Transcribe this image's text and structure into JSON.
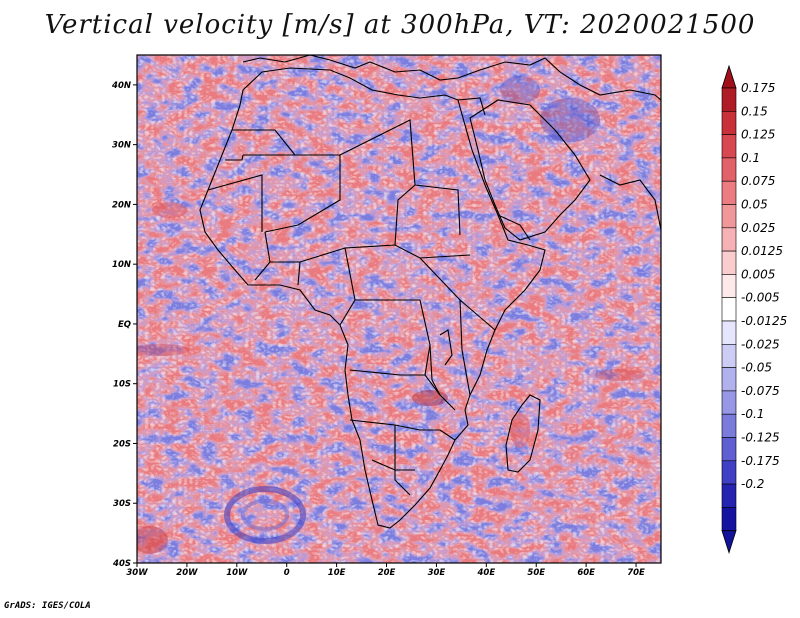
{
  "title": "Vertical velocity [m/s] at 300hPa, VT: 2020021500",
  "footer": "GrADS: IGES/COLA",
  "map": {
    "lat_labels": [
      "40N",
      "30N",
      "20N",
      "10N",
      "EQ",
      "10S",
      "20S",
      "30S",
      "40S"
    ],
    "lat_values": [
      40,
      30,
      20,
      10,
      0,
      -10,
      -20,
      -30,
      -40
    ],
    "lon_labels": [
      "30W",
      "20W",
      "10W",
      "0",
      "10E",
      "20E",
      "30E",
      "40E",
      "50E",
      "60E",
      "70E"
    ],
    "lon_values": [
      -30,
      -20,
      -10,
      0,
      10,
      20,
      30,
      40,
      50,
      60,
      70
    ],
    "lat_range": [
      -40,
      45
    ],
    "lon_range": [
      -30,
      75
    ],
    "field": "vertical velocity",
    "units": "m/s",
    "level": "300hPa",
    "valid_time": "2020021500"
  },
  "colorbar": {
    "labels": [
      "0.175",
      "0.15",
      "0.125",
      "0.1",
      "0.075",
      "0.05",
      "0.025",
      "0.0125",
      "0.005",
      "-0.005",
      "-0.0125",
      "-0.025",
      "-0.05",
      "-0.075",
      "-0.1",
      "-0.125",
      "-0.175",
      "-0.2"
    ],
    "colors": [
      "#b01c26",
      "#c8303a",
      "#d84850",
      "#e2626a",
      "#ea7c82",
      "#f0979a",
      "#f5b1b3",
      "#f9cdce",
      "#fde9e9",
      "#ffffff",
      "#e5e5fb",
      "#ccccf5",
      "#b1b1ee",
      "#9797e6",
      "#7b7bdc",
      "#5f5fd1",
      "#4040c4",
      "#2424b0",
      "#1414a0"
    ],
    "top_arrow_color": "#a01018",
    "bottom_arrow_color": "#12129a"
  }
}
